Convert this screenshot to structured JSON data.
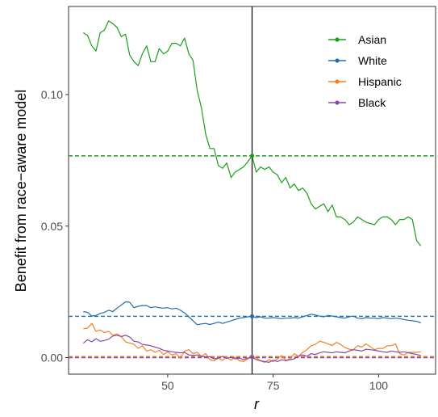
{
  "chart_data": {
    "type": "line",
    "xlabel": "r",
    "ylabel": "Benefit from race−aware model",
    "xlim": [
      26.5,
      113.5
    ],
    "ylim": [
      -0.0063,
      0.1335
    ],
    "x_ticks": [
      50,
      75,
      100
    ],
    "x_tick_labels": [
      "50",
      "75",
      "100"
    ],
    "y_ticks": [
      0.0,
      0.05,
      0.1
    ],
    "y_tick_labels": [
      "0.00",
      "0.05",
      "0.10"
    ],
    "grid": false,
    "legend_position": "top-right",
    "vline_x": 70,
    "x": [
      30,
      31,
      32,
      33,
      34,
      35,
      36,
      37,
      38,
      39,
      40,
      41,
      42,
      43,
      44,
      45,
      46,
      47,
      48,
      49,
      50,
      51,
      52,
      53,
      54,
      55,
      56,
      57,
      58,
      59,
      60,
      61,
      62,
      63,
      64,
      65,
      66,
      67,
      68,
      69,
      70,
      71,
      72,
      73,
      74,
      75,
      76,
      77,
      78,
      79,
      80,
      81,
      82,
      83,
      84,
      85,
      86,
      87,
      88,
      89,
      90,
      91,
      92,
      93,
      94,
      95,
      96,
      97,
      98,
      99,
      100,
      101,
      102,
      103,
      104,
      105,
      106,
      107,
      108,
      109,
      110
    ],
    "series": [
      {
        "name": "Asian",
        "color": "#1a9e1a",
        "hline": 0.0767,
        "values": [
          0.1235,
          0.1225,
          0.1185,
          0.1165,
          0.1235,
          0.1245,
          0.128,
          0.127,
          0.1255,
          0.122,
          0.123,
          0.115,
          0.1125,
          0.111,
          0.1155,
          0.1185,
          0.1125,
          0.1125,
          0.1175,
          0.1155,
          0.1165,
          0.1195,
          0.1195,
          0.1185,
          0.1215,
          0.1155,
          0.113,
          0.1015,
          0.095,
          0.085,
          0.0795,
          0.0795,
          0.073,
          0.072,
          0.074,
          0.0685,
          0.0705,
          0.0715,
          0.0725,
          0.0745,
          0.0767,
          0.0705,
          0.0725,
          0.0715,
          0.0725,
          0.0705,
          0.0695,
          0.0665,
          0.0685,
          0.0645,
          0.066,
          0.0635,
          0.0645,
          0.0625,
          0.0585,
          0.0565,
          0.0575,
          0.0585,
          0.0555,
          0.058,
          0.0535,
          0.0535,
          0.0525,
          0.0505,
          0.0515,
          0.0535,
          0.0525,
          0.0515,
          0.051,
          0.0505,
          0.0525,
          0.0535,
          0.0535,
          0.0525,
          0.0505,
          0.0525,
          0.0525,
          0.0535,
          0.0525,
          0.0445,
          0.0425
        ]
      },
      {
        "name": "White",
        "color": "#1f6eb0",
        "hline": 0.0157,
        "values": [
          0.0175,
          0.0172,
          0.0158,
          0.016,
          0.0168,
          0.0172,
          0.018,
          0.0175,
          0.0188,
          0.02,
          0.0212,
          0.021,
          0.019,
          0.0195,
          0.0198,
          0.0198,
          0.019,
          0.0193,
          0.019,
          0.0188,
          0.019,
          0.0185,
          0.0188,
          0.018,
          0.017,
          0.0155,
          0.014,
          0.0125,
          0.0128,
          0.013,
          0.0126,
          0.013,
          0.0135,
          0.013,
          0.0135,
          0.014,
          0.0145,
          0.015,
          0.0152,
          0.0155,
          0.0157,
          0.0152,
          0.0155,
          0.015,
          0.015,
          0.0152,
          0.015,
          0.0148,
          0.015,
          0.015,
          0.0152,
          0.015,
          0.0155,
          0.016,
          0.0165,
          0.0162,
          0.0158,
          0.0155,
          0.016,
          0.0158,
          0.0155,
          0.0152,
          0.015,
          0.0155,
          0.0158,
          0.015,
          0.0148,
          0.0152,
          0.015,
          0.015,
          0.0148,
          0.0152,
          0.015,
          0.0148,
          0.015,
          0.0148,
          0.0145,
          0.0142,
          0.014,
          0.0138,
          0.0132
        ]
      },
      {
        "name": "Hispanic",
        "color": "#f57f20",
        "hline": 0.0004,
        "values": [
          0.011,
          0.0112,
          0.013,
          0.01,
          0.0105,
          0.0095,
          0.01,
          0.0085,
          0.009,
          0.008,
          0.006,
          0.0055,
          0.005,
          0.0035,
          0.0045,
          0.0025,
          0.003,
          0.002,
          0.0028,
          0.0012,
          0.0022,
          0.001,
          0.0015,
          -0.0003,
          0.0025,
          0.003,
          0.0015,
          0.002,
          0.0005,
          0.0015,
          -0.0008,
          -0.0012,
          -0.0002,
          -0.001,
          0.0002,
          -0.001,
          0.0002,
          -0.0012,
          -0.0015,
          -0.0005,
          0.0004,
          -0.0002,
          -0.0012,
          -0.0018,
          -0.0008,
          -0.0015,
          -0.0005,
          0.0008,
          -0.001,
          -0.0005,
          0.0015,
          0.0005,
          0.002,
          0.003,
          0.0045,
          0.005,
          0.0062,
          0.0058,
          0.0052,
          0.0046,
          0.0058,
          0.005,
          0.0038,
          0.0032,
          0.003,
          0.0045,
          0.004,
          0.0052,
          0.0042,
          0.003,
          0.0035,
          0.0035,
          0.0045,
          0.0045,
          0.0052,
          0.0015,
          0.001,
          0.002,
          0.002,
          0.002,
          0.0022
        ]
      },
      {
        "name": "Black",
        "color": "#8a4aa8",
        "hline": 0.0,
        "values": [
          0.0055,
          0.0068,
          0.006,
          0.0072,
          0.0062,
          0.0065,
          0.007,
          0.0082,
          0.0085,
          0.008,
          0.0085,
          0.0078,
          0.0062,
          0.006,
          0.005,
          0.0048,
          0.0045,
          0.004,
          0.0035,
          0.0028,
          0.0025,
          0.0022,
          0.002,
          0.0018,
          0.002,
          0.001,
          0.0008,
          0.001,
          0.0005,
          0.0002,
          0.0004,
          -0.0005,
          -0.0002,
          0.0005,
          -0.0003,
          0.0002,
          -0.0005,
          -0.0002,
          -0.0008,
          -0.0002,
          0.0002,
          -0.0008,
          -0.0012,
          -0.0015,
          -0.0018,
          -0.001,
          -0.0015,
          -0.0008,
          -0.0012,
          -0.0008,
          -0.0005,
          0.0005,
          0.001,
          0.0005,
          0.0015,
          0.0012,
          0.0018,
          0.0022,
          0.002,
          0.0018,
          0.0022,
          0.002,
          0.0018,
          0.0025,
          0.003,
          0.0028,
          0.0025,
          0.0032,
          0.003,
          0.0028,
          0.0025,
          0.0022,
          0.002,
          0.0025,
          0.0022,
          0.002,
          0.0022,
          0.0018,
          0.0015,
          0.0012,
          0.0008
        ]
      }
    ]
  }
}
